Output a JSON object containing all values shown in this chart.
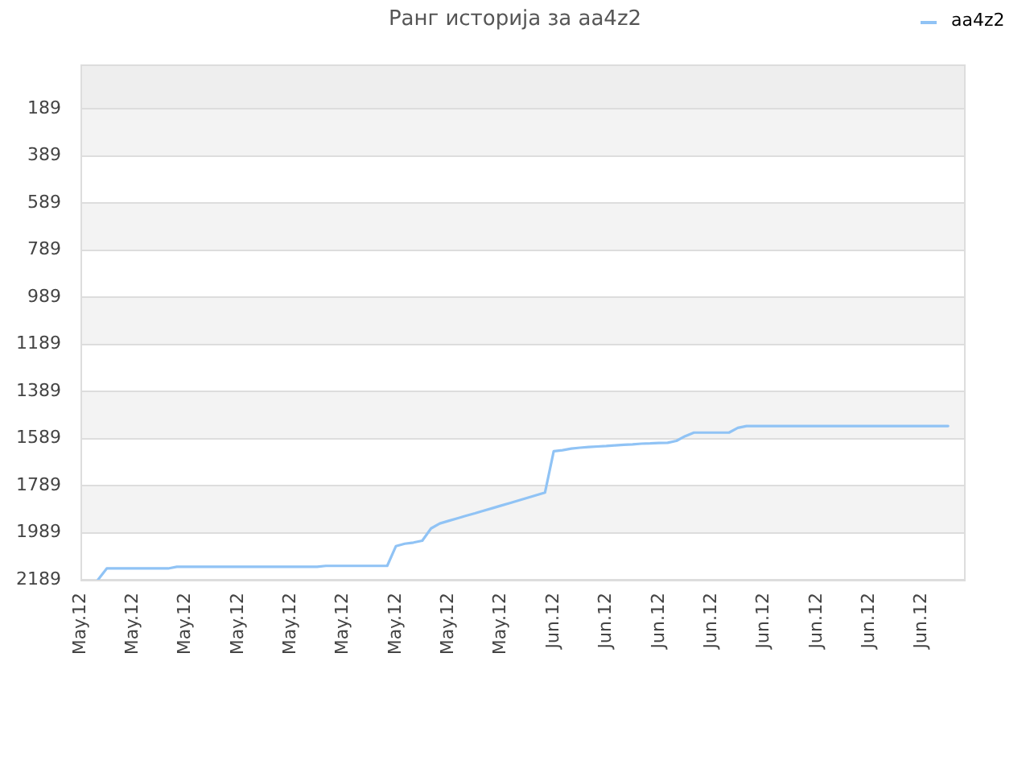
{
  "chart_data": {
    "type": "line",
    "title": "Ранг историја за aa4z2",
    "categories": [
      "May.12",
      null,
      null,
      null,
      null,
      null,
      "May.12",
      null,
      null,
      null,
      null,
      null,
      "May.12",
      null,
      null,
      null,
      null,
      null,
      "May.12",
      null,
      null,
      null,
      null,
      null,
      "May.12",
      null,
      null,
      null,
      null,
      null,
      "May.12",
      null,
      null,
      null,
      null,
      null,
      "May.12",
      null,
      null,
      null,
      null,
      null,
      "May.12",
      null,
      null,
      null,
      null,
      null,
      "May.12",
      null,
      null,
      null,
      null,
      null,
      "Jun.12",
      null,
      null,
      null,
      null,
      null,
      "Jun.12",
      null,
      null,
      null,
      null,
      null,
      "Jun.12",
      null,
      null,
      null,
      null,
      null,
      "Jun.12",
      null,
      null,
      null,
      null,
      null,
      "Jun.12",
      null,
      null,
      null,
      null,
      null,
      "Jun.12",
      null,
      null,
      null,
      null,
      null,
      "Jun.12",
      null,
      null,
      null,
      null,
      null,
      "Jun.12",
      null,
      null,
      null,
      null,
      null
    ],
    "series": [
      {
        "name": "aa4z2",
        "color": "#90c3f5",
        "values": [
          null,
          null,
          2189,
          2141,
          2141,
          2141,
          2141,
          2141,
          2141,
          2141,
          2141,
          2134,
          2134,
          2134,
          2134,
          2134,
          2134,
          2134,
          2134,
          2134,
          2134,
          2134,
          2134,
          2134,
          2134,
          2134,
          2134,
          2134,
          2130,
          2130,
          2130,
          2130,
          2130,
          2130,
          2130,
          2130,
          2046,
          2036,
          2031,
          2023,
          1971,
          1950,
          1939,
          1928,
          1917,
          1907,
          1896,
          1885,
          1874,
          1863,
          1852,
          1841,
          1830,
          1819,
          1643,
          1639,
          1632,
          1628,
          1625,
          1623,
          1621,
          1618,
          1616,
          1614,
          1611,
          1610,
          1608,
          1607,
          1599,
          1579,
          1564,
          1564,
          1564,
          1564,
          1564,
          1544,
          1536,
          1536,
          1536,
          1536,
          1536,
          1536,
          1536,
          1536,
          1536,
          1536,
          1536,
          1536,
          1536,
          1536,
          1536,
          1536,
          1536,
          1536,
          1536,
          1536,
          1536,
          1536,
          1536,
          1536,
          null,
          null
        ]
      }
    ],
    "ylim": [
      2189,
      0
    ],
    "yticks": [
      189,
      389,
      589,
      789,
      989,
      1189,
      1389,
      1589,
      1789,
      1989,
      2189
    ],
    "bands": [
      {
        "axis": "y",
        "from": 0,
        "to": 189,
        "color": "#eeeeee"
      },
      {
        "axis": "y",
        "from": 189,
        "to": 389,
        "color": "#f3f3f3"
      },
      {
        "axis": "y",
        "from": 589,
        "to": 789,
        "color": "#f3f3f3"
      },
      {
        "axis": "y",
        "from": 989,
        "to": 1189,
        "color": "#f3f3f3"
      },
      {
        "axis": "y",
        "from": 1389,
        "to": 1589,
        "color": "#f3f3f3"
      },
      {
        "axis": "y",
        "from": 1789,
        "to": 1989,
        "color": "#f3f3f3"
      }
    ],
    "grid": "y",
    "legend": "top right",
    "marker": "none"
  }
}
